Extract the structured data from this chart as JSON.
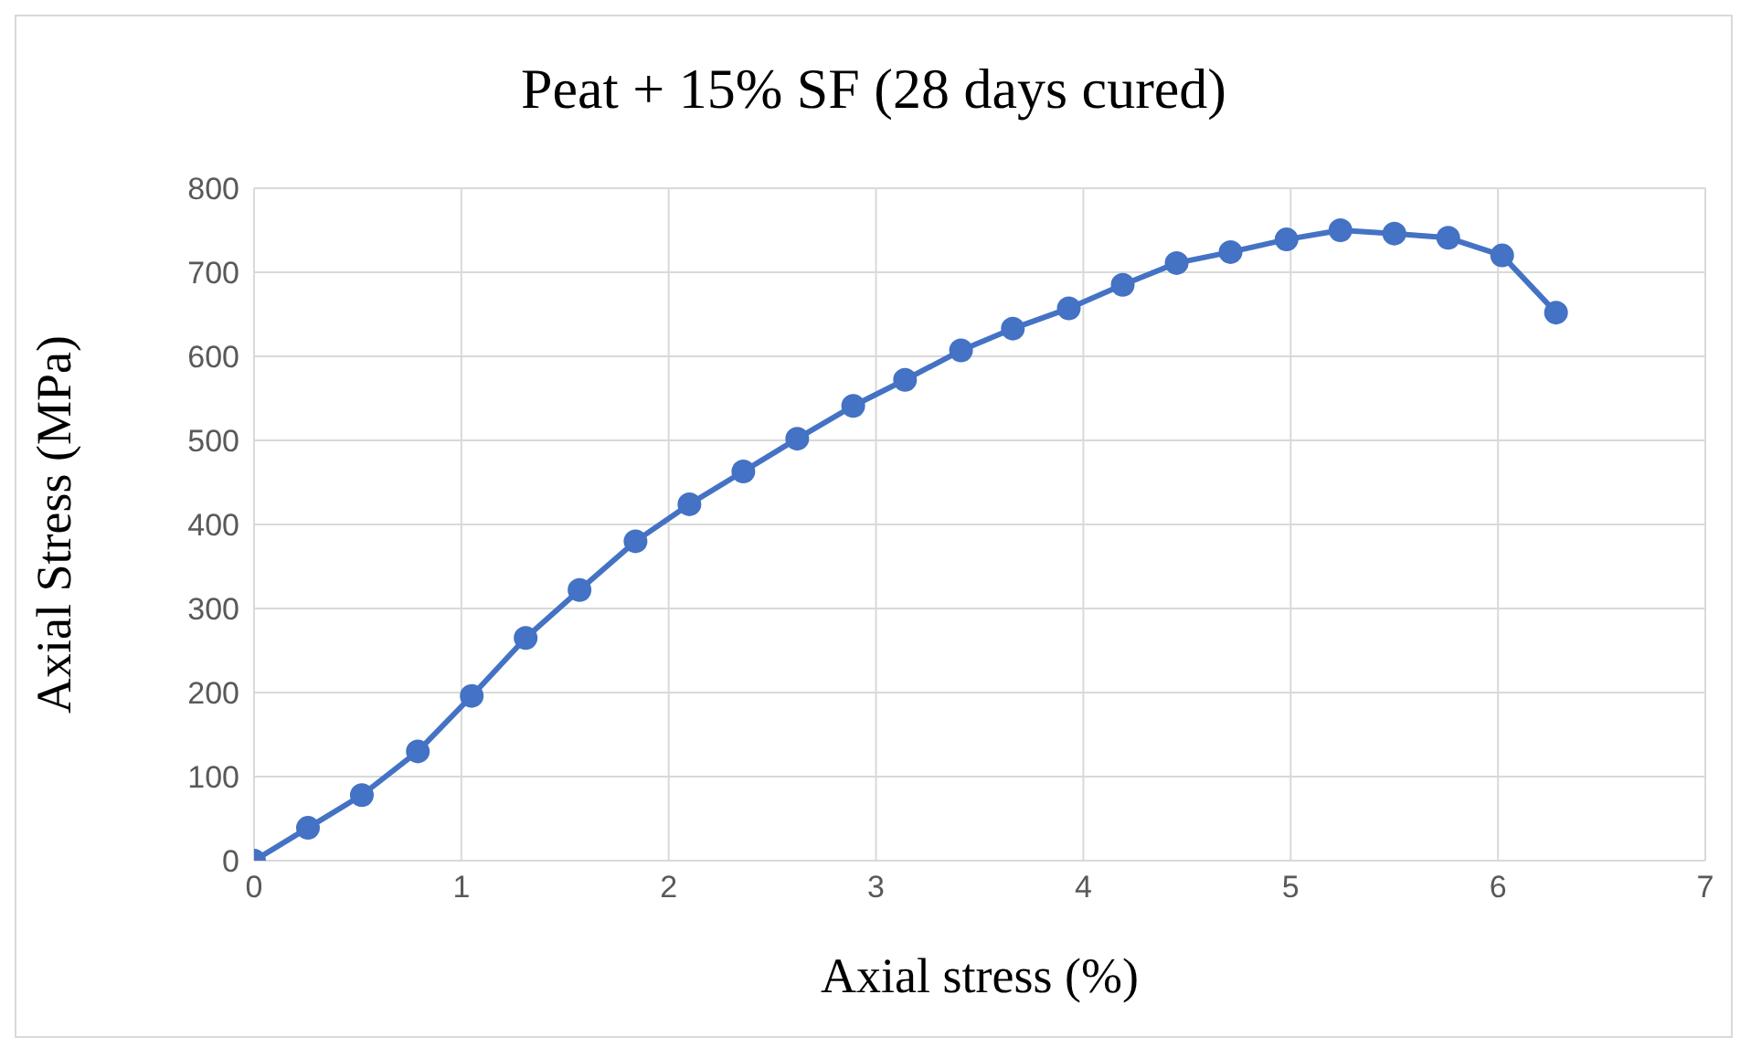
{
  "chart_data": {
    "type": "line",
    "title": "Peat + 15% SF (28 days cured)",
    "xlabel": "Axial stress (%)",
    "ylabel": "Axial Stress (MPa)",
    "x": [
      0,
      0.26,
      0.52,
      0.79,
      1.05,
      1.31,
      1.57,
      1.84,
      2.1,
      2.36,
      2.62,
      2.89,
      3.14,
      3.41,
      3.66,
      3.93,
      4.19,
      4.45,
      4.71,
      4.98,
      5.24,
      5.5,
      5.76,
      6.02,
      6.28
    ],
    "series": [
      {
        "color": "#4472c4",
        "values": [
          0,
          39,
          78,
          130,
          196,
          265,
          322,
          380,
          424,
          463,
          502,
          541,
          572,
          607,
          633,
          657,
          685,
          711,
          724,
          739,
          750,
          746,
          741,
          720,
          652
        ]
      }
    ],
    "xlim": [
      0,
      7
    ],
    "xticks": [
      0,
      1,
      2,
      3,
      4,
      5,
      6,
      7
    ],
    "ylim": [
      0,
      800
    ],
    "yticks": [
      0,
      100,
      200,
      300,
      400,
      500,
      600,
      700,
      800
    ],
    "grid": true,
    "legend": false,
    "marker": "circle",
    "line_style": "solid"
  }
}
